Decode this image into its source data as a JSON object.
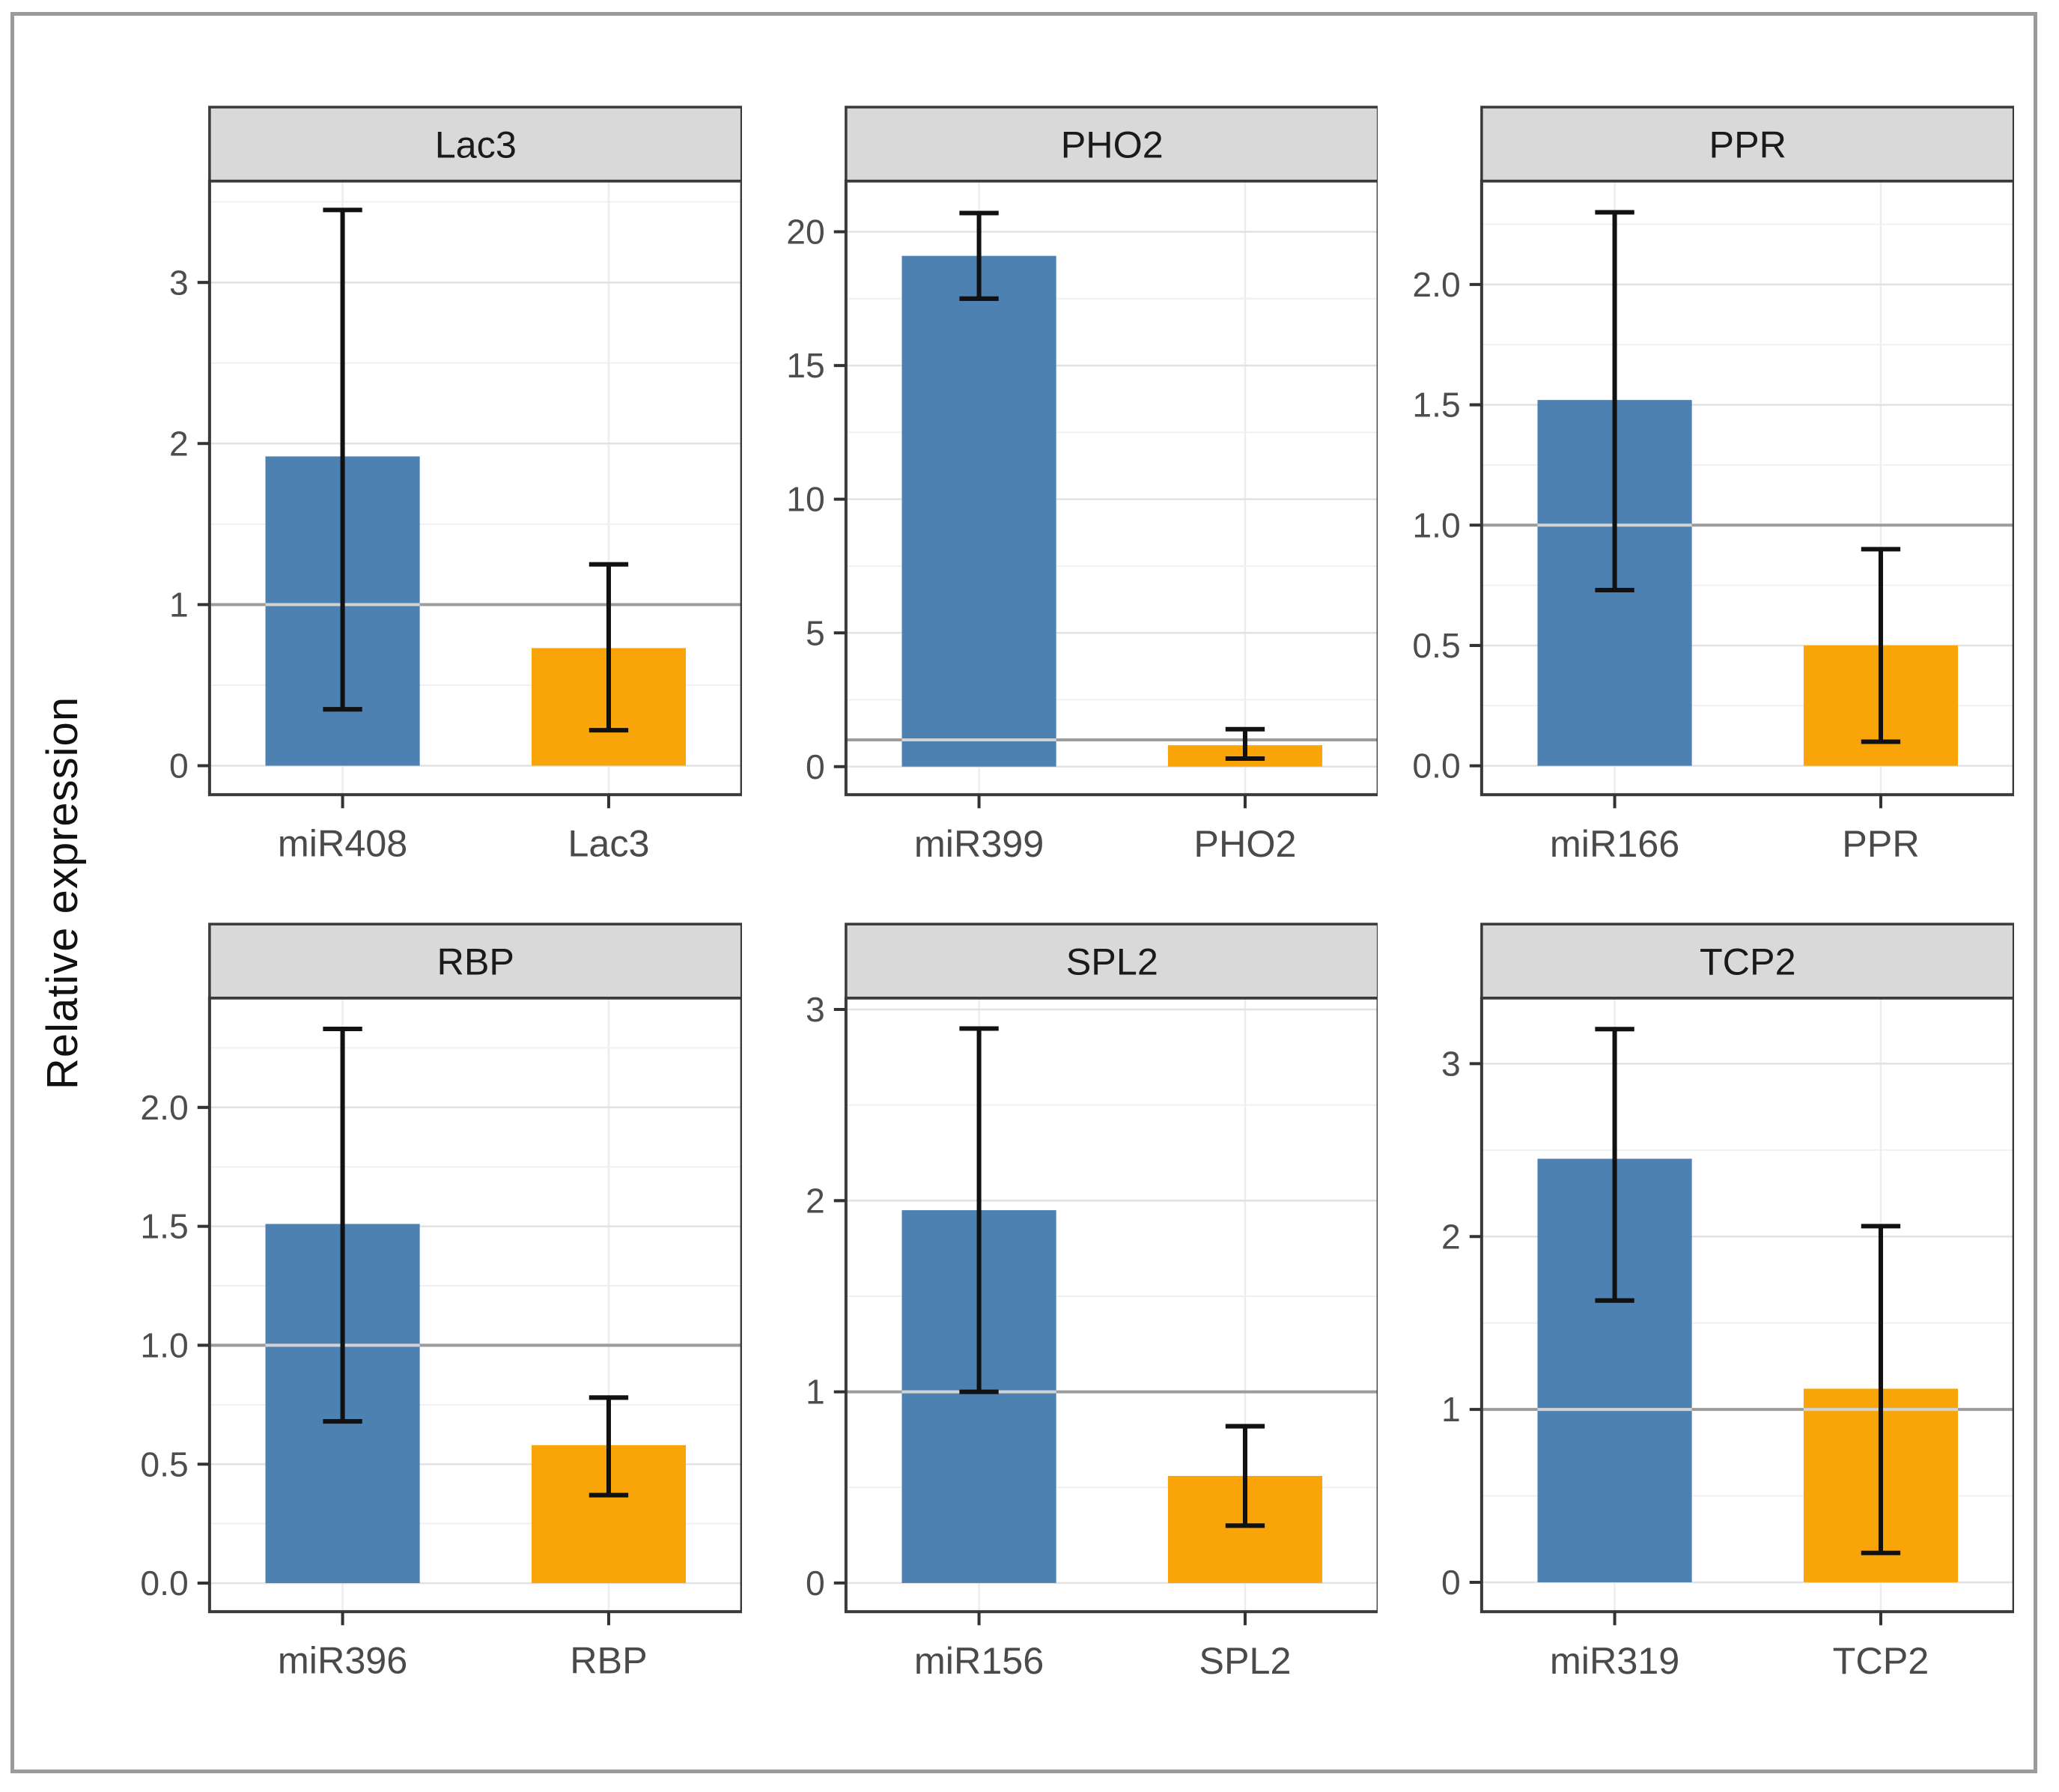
{
  "figure": {
    "y_axis_title": "Relative expression",
    "colors": {
      "mirna_bar": "#4D81B1",
      "target_bar": "#F9A50A",
      "strip_fill": "#D9D9D9",
      "strip_border": "#3A3A3A",
      "panel_border": "#3A3A3A",
      "grid_major": "#E2E2E2",
      "grid_minor": "#F0F0F0",
      "grid_vertical": "#EDEDED",
      "reference_line": "#9C9C9C",
      "error_bar": "#111111",
      "tick_mark": "#333333",
      "tick_label": "#4D4D4D",
      "x_label": "#4A4A4A",
      "strip_text": "#1A1A1A",
      "outer_border": "#9A9A9A"
    }
  },
  "chart_data": [
    {
      "type": "bar",
      "title": "Lac3",
      "categories": [
        "miR408",
        "Lac3"
      ],
      "values": [
        1.92,
        0.73
      ],
      "error_low": [
        0.35,
        0.22
      ],
      "error_high": [
        3.45,
        1.25
      ],
      "series_roles": [
        "mirna",
        "target"
      ],
      "yticks": [
        0,
        1,
        2,
        3
      ],
      "ytick_labels": [
        "0",
        "1",
        "2",
        "3"
      ],
      "ylim": [
        -0.18,
        3.63
      ],
      "minor_step": 0.5,
      "ref_line_y": 1,
      "xlabel": "",
      "ylabel": "Relative expression",
      "grid": true,
      "legend": "none"
    },
    {
      "type": "bar",
      "title": "PHO2",
      "categories": [
        "miR399",
        "PHO2"
      ],
      "values": [
        19.1,
        0.8
      ],
      "error_low": [
        17.5,
        0.3
      ],
      "error_high": [
        20.7,
        1.4
      ],
      "series_roles": [
        "mirna",
        "target"
      ],
      "yticks": [
        0,
        5,
        10,
        15,
        20
      ],
      "ytick_labels": [
        "0",
        "5",
        "10",
        "15",
        "20"
      ],
      "ylim": [
        -1.05,
        21.9
      ],
      "minor_step": 2.5,
      "ref_line_y": 1,
      "xlabel": "",
      "ylabel": "Relative expression",
      "grid": true,
      "legend": "none"
    },
    {
      "type": "bar",
      "title": "PPR",
      "categories": [
        "miR166",
        "PPR"
      ],
      "values": [
        1.52,
        0.5
      ],
      "error_low": [
        0.73,
        0.1
      ],
      "error_high": [
        2.3,
        0.9
      ],
      "series_roles": [
        "mirna",
        "target"
      ],
      "yticks": [
        0,
        0.5,
        1,
        1.5,
        2
      ],
      "ytick_labels": [
        "0.0",
        "0.5",
        "1.0",
        "1.5",
        "2.0"
      ],
      "ylim": [
        -0.12,
        2.43
      ],
      "minor_step": 0.25,
      "ref_line_y": 1,
      "xlabel": "",
      "ylabel": "Relative expression",
      "grid": true,
      "legend": "none"
    },
    {
      "type": "bar",
      "title": "RBP",
      "categories": [
        "miR396",
        "RBP"
      ],
      "values": [
        1.51,
        0.58
      ],
      "error_low": [
        0.68,
        0.37
      ],
      "error_high": [
        2.33,
        0.78
      ],
      "series_roles": [
        "mirna",
        "target"
      ],
      "yticks": [
        0,
        0.5,
        1,
        1.5,
        2
      ],
      "ytick_labels": [
        "0.0",
        "0.5",
        "1.0",
        "1.5",
        "2.0"
      ],
      "ylim": [
        -0.12,
        2.46
      ],
      "minor_step": 0.25,
      "ref_line_y": 1,
      "xlabel": "",
      "ylabel": "Relative expression",
      "grid": true,
      "legend": "none"
    },
    {
      "type": "bar",
      "title": "SPL2",
      "categories": [
        "miR156",
        "SPL2"
      ],
      "values": [
        1.95,
        0.56
      ],
      "error_low": [
        1.0,
        0.3
      ],
      "error_high": [
        2.9,
        0.82
      ],
      "series_roles": [
        "mirna",
        "target"
      ],
      "yticks": [
        0,
        1,
        2,
        3
      ],
      "ytick_labels": [
        "0",
        "1",
        "2",
        "3"
      ],
      "ylim": [
        -0.15,
        3.06
      ],
      "minor_step": 0.5,
      "ref_line_y": 1,
      "xlabel": "",
      "ylabel": "Relative expression",
      "grid": true,
      "legend": "none"
    },
    {
      "type": "bar",
      "title": "TCP2",
      "categories": [
        "miR319",
        "TCP2"
      ],
      "values": [
        2.45,
        1.12
      ],
      "error_low": [
        1.63,
        0.17
      ],
      "error_high": [
        3.2,
        2.06
      ],
      "series_roles": [
        "mirna",
        "target"
      ],
      "yticks": [
        0,
        1,
        2,
        3
      ],
      "ytick_labels": [
        "0",
        "1",
        "2",
        "3"
      ],
      "ylim": [
        -0.17,
        3.38
      ],
      "minor_step": 0.5,
      "ref_line_y": 1,
      "xlabel": "",
      "ylabel": "Relative expression",
      "grid": true,
      "legend": "none"
    }
  ]
}
